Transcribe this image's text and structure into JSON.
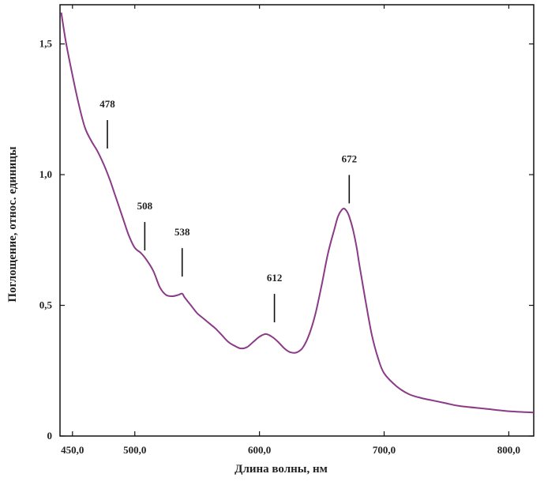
{
  "chart_data": {
    "type": "line",
    "title": "",
    "xlabel": "Длина волны, нм",
    "ylabel": "Поглощение, относ. единицы",
    "xlim": [
      440,
      820
    ],
    "ylim": [
      0,
      1.65
    ],
    "grid": false,
    "x_ticks": [
      {
        "value": 450,
        "label": "450,0"
      },
      {
        "value": 500,
        "label": "500,0"
      },
      {
        "value": 600,
        "label": "600,0"
      },
      {
        "value": 700,
        "label": "700,0"
      },
      {
        "value": 800,
        "label": "800,0"
      }
    ],
    "y_ticks": [
      {
        "value": 0,
        "label": "0"
      },
      {
        "value": 0.5,
        "label": "0,5"
      },
      {
        "value": 1.0,
        "label": "1,0"
      },
      {
        "value": 1.5,
        "label": "1,5"
      }
    ],
    "series": [
      {
        "color": "#8a3a86",
        "x": [
          441,
          445,
          450,
          455,
          460,
          465,
          470,
          475,
          480,
          485,
          490,
          495,
          500,
          505,
          510,
          515,
          520,
          525,
          530,
          535,
          538,
          540,
          545,
          550,
          555,
          560,
          565,
          570,
          575,
          580,
          585,
          590,
          595,
          600,
          605,
          610,
          615,
          620,
          625,
          630,
          635,
          640,
          645,
          650,
          655,
          660,
          663,
          666,
          668,
          670,
          672,
          675,
          678,
          680,
          685,
          690,
          695,
          700,
          710,
          720,
          730,
          740,
          750,
          760,
          780,
          800,
          820
        ],
        "y": [
          1.62,
          1.5,
          1.38,
          1.27,
          1.18,
          1.13,
          1.09,
          1.04,
          0.98,
          0.91,
          0.84,
          0.77,
          0.72,
          0.7,
          0.67,
          0.63,
          0.57,
          0.54,
          0.535,
          0.54,
          0.545,
          0.53,
          0.5,
          0.47,
          0.45,
          0.43,
          0.41,
          0.385,
          0.36,
          0.345,
          0.335,
          0.34,
          0.36,
          0.38,
          0.39,
          0.38,
          0.36,
          0.335,
          0.32,
          0.32,
          0.34,
          0.39,
          0.47,
          0.58,
          0.7,
          0.79,
          0.84,
          0.865,
          0.87,
          0.86,
          0.84,
          0.79,
          0.72,
          0.66,
          0.52,
          0.39,
          0.3,
          0.24,
          0.19,
          0.16,
          0.145,
          0.135,
          0.125,
          0.115,
          0.105,
          0.095,
          0.09
        ]
      }
    ],
    "annotations": [
      {
        "label": "478",
        "x": 478,
        "y": 1.1
      },
      {
        "label": "508",
        "x": 508,
        "y": 0.71
      },
      {
        "label": "538",
        "x": 538,
        "y": 0.61
      },
      {
        "label": "612",
        "x": 612,
        "y": 0.435
      },
      {
        "label": "672",
        "x": 672,
        "y": 0.89
      }
    ]
  }
}
